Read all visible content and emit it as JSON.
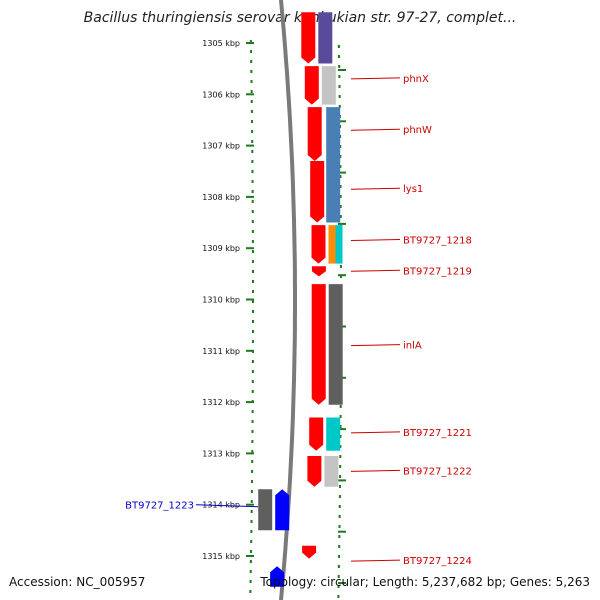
{
  "title": "Bacillus thuringiensis serovar konkukian str. 97-27, complet...",
  "footer": {
    "accession": "Accession: NC_005957",
    "summary": "Topology: circular; Length: 5,237,682 bp; Genes: 5,263"
  },
  "colors": {
    "forward_label": "#cc0000",
    "reverse_label": "#0000cc",
    "tick": "#1f7a1f",
    "backbone": "#7a7a7a"
  },
  "scale": {
    "unit": "kbp",
    "ticks": [
      {
        "kbp": 1305,
        "label": "1305 kbp"
      },
      {
        "kbp": 1306,
        "label": "1306 kbp"
      },
      {
        "kbp": 1307,
        "label": "1307 kbp"
      },
      {
        "kbp": 1308,
        "label": "1308 kbp"
      },
      {
        "kbp": 1309,
        "label": "1309 kbp"
      },
      {
        "kbp": 1310,
        "label": "1310 kbp"
      },
      {
        "kbp": 1311,
        "label": "1311 kbp"
      },
      {
        "kbp": 1312,
        "label": "1312 kbp"
      },
      {
        "kbp": 1313,
        "label": "1313 kbp"
      },
      {
        "kbp": 1314,
        "label": "1314 kbp"
      },
      {
        "kbp": 1315,
        "label": "1315 kbp"
      }
    ]
  },
  "gene_labels": [
    {
      "text": "phnX",
      "strand": "forward",
      "kbp": 1305.7
    },
    {
      "text": "phnW",
      "strand": "forward",
      "kbp": 1306.7
    },
    {
      "text": "lys1",
      "strand": "forward",
      "kbp": 1307.85
    },
    {
      "text": "BT9727_1218",
      "strand": "forward",
      "kbp": 1308.85
    },
    {
      "text": "BT9727_1219",
      "strand": "forward",
      "kbp": 1309.45
    },
    {
      "text": "inlA",
      "strand": "forward",
      "kbp": 1310.9
    },
    {
      "text": "BT9727_1221",
      "strand": "forward",
      "kbp": 1312.6
    },
    {
      "text": "BT9727_1222",
      "strand": "forward",
      "kbp": 1313.35
    },
    {
      "text": "BT9727_1223",
      "strand": "reverse",
      "kbp": 1314.0
    },
    {
      "text": "BT9727_1224",
      "strand": "forward",
      "kbp": 1315.1
    }
  ],
  "features": [
    {
      "track": "fwd_cds",
      "start": 1304.4,
      "end": 1305.4,
      "color": "#ff0000"
    },
    {
      "track": "fwd_cds",
      "start": 1305.45,
      "end": 1306.2,
      "color": "#ff0000"
    },
    {
      "track": "fwd_cds",
      "start": 1306.25,
      "end": 1307.3,
      "color": "#ff0000"
    },
    {
      "track": "fwd_cds",
      "start": 1307.3,
      "end": 1308.5,
      "color": "#ff0000"
    },
    {
      "track": "fwd_cds",
      "start": 1308.55,
      "end": 1309.3,
      "color": "#ff0000"
    },
    {
      "track": "fwd_cds",
      "start": 1309.35,
      "end": 1309.55,
      "color": "#ff0000"
    },
    {
      "track": "fwd_cds",
      "start": 1309.7,
      "end": 1312.05,
      "color": "#ff0000"
    },
    {
      "track": "fwd_cds",
      "start": 1312.3,
      "end": 1312.95,
      "color": "#ff0000"
    },
    {
      "track": "fwd_cds",
      "start": 1313.05,
      "end": 1313.65,
      "color": "#ff0000"
    },
    {
      "track": "fwd_cds",
      "start": 1314.8,
      "end": 1315.05,
      "color": "#ff0000"
    },
    {
      "track": "fwd_cog",
      "start": 1304.4,
      "end": 1305.4,
      "color": "#5a4a9a"
    },
    {
      "track": "fwd_cog",
      "start": 1305.45,
      "end": 1306.2,
      "color": "#c4c4c4"
    },
    {
      "track": "fwd_cog",
      "start": 1306.25,
      "end": 1308.5,
      "color": "#4a7fb5"
    },
    {
      "track": "fwd_cog_a",
      "start": 1308.55,
      "end": 1309.3,
      "color": "#ff8c00"
    },
    {
      "track": "fwd_cog_b",
      "start": 1308.55,
      "end": 1309.3,
      "color": "#00c8c8"
    },
    {
      "track": "fwd_cog",
      "start": 1309.7,
      "end": 1312.05,
      "color": "#5f5f5f"
    },
    {
      "track": "fwd_cog",
      "start": 1312.3,
      "end": 1312.95,
      "color": "#00c8c8"
    },
    {
      "track": "fwd_cog",
      "start": 1313.05,
      "end": 1313.65,
      "color": "#c4c4c4"
    },
    {
      "track": "rev_cog",
      "start": 1313.7,
      "end": 1314.5,
      "color": "#5f5f5f"
    },
    {
      "track": "rev_cds",
      "start": 1313.7,
      "end": 1314.5,
      "color": "#0000ff"
    },
    {
      "track": "rev_cds",
      "start": 1315.2,
      "end": 1315.6,
      "color": "#0000ff"
    }
  ]
}
